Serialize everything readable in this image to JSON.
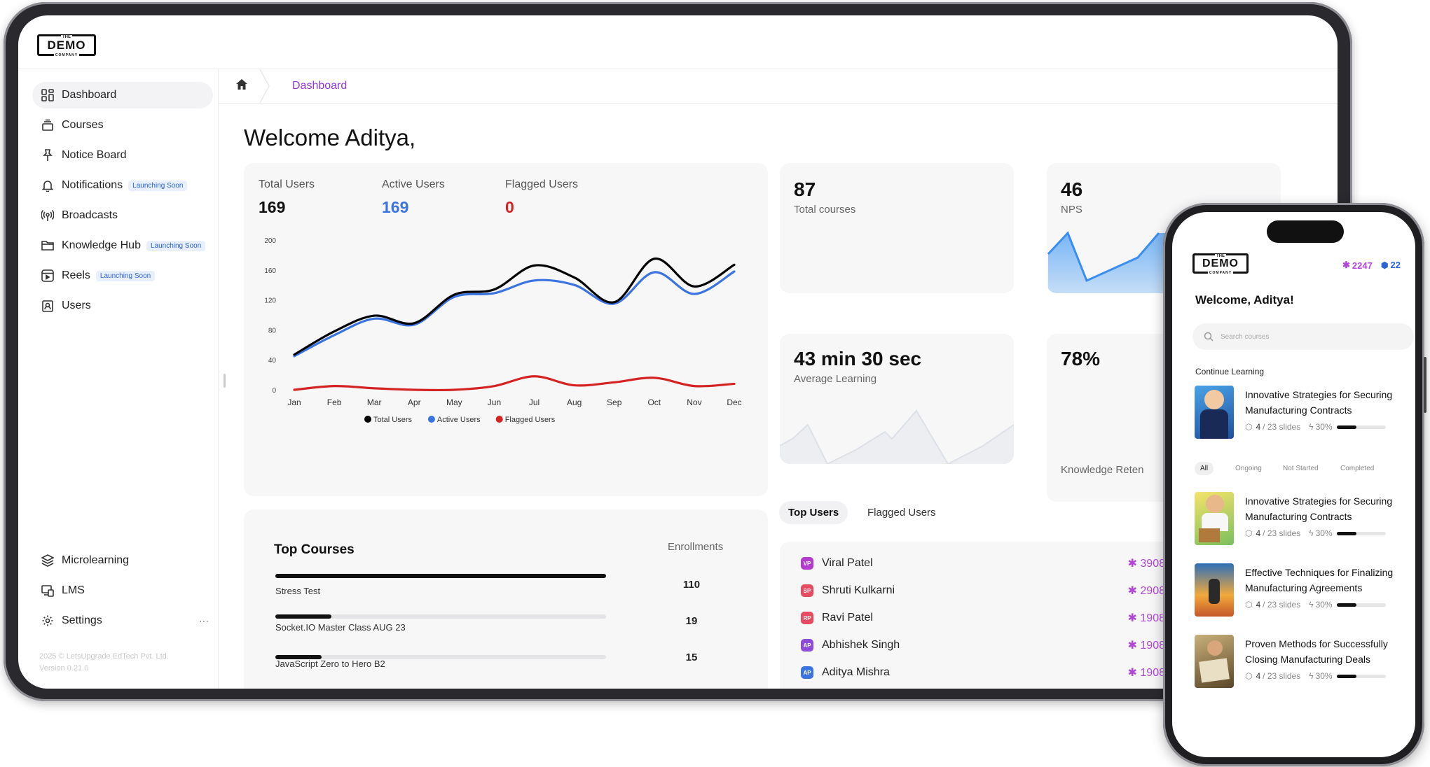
{
  "brand": {
    "logo_text": "DEMO",
    "logo_top": "THE",
    "logo_bottom": "COMPANY"
  },
  "sidebar": {
    "items": [
      {
        "label": "Dashboard",
        "icon": "grid-icon",
        "active": true
      },
      {
        "label": "Courses",
        "icon": "stack-icon"
      },
      {
        "label": "Notice Board",
        "icon": "pin-icon"
      },
      {
        "label": "Notifications",
        "icon": "bell-icon",
        "badge": "Launching Soon"
      },
      {
        "label": "Broadcasts",
        "icon": "broadcast-icon"
      },
      {
        "label": "Knowledge Hub",
        "icon": "folder-icon",
        "badge": "Launching Soon"
      },
      {
        "label": "Reels",
        "icon": "reels-icon",
        "badge": "Launching Soon"
      },
      {
        "label": "Users",
        "icon": "user-badge-icon"
      }
    ],
    "bottom_items": [
      {
        "label": "Microlearning",
        "icon": "layers-icon"
      },
      {
        "label": "LMS",
        "icon": "devices-icon"
      },
      {
        "label": "Settings",
        "icon": "gear-icon",
        "more": "···"
      }
    ],
    "footer_line1": "2025 © LetsUpgrade EdTech Pvt. Ltd.",
    "footer_line2": "Version 0.21.0"
  },
  "breadcrumb": {
    "current": "Dashboard"
  },
  "welcome": "Welcome Aditya,",
  "users_card": {
    "total_label": "Total Users",
    "total_value": "169",
    "active_label": "Active Users",
    "active_value": "169",
    "flagged_label": "Flagged Users",
    "flagged_value": "0"
  },
  "chart_data": {
    "type": "line",
    "categories": [
      "Jan",
      "Feb",
      "Mar",
      "Apr",
      "May",
      "Jun",
      "Jul",
      "Aug",
      "Sep",
      "Oct",
      "Nov",
      "Dec"
    ],
    "ylim": [
      0,
      200
    ],
    "yticks": [
      "200",
      "160",
      "120",
      "80",
      "40",
      "0"
    ],
    "series": [
      {
        "name": "Total Users",
        "color": "#000000",
        "values": [
          47,
          78,
          99,
          89,
          127,
          134,
          166,
          150,
          117,
          175,
          138,
          167
        ]
      },
      {
        "name": "Active Users",
        "color": "#3b74e0",
        "values": [
          45,
          73,
          95,
          87,
          124,
          129,
          146,
          140,
          115,
          157,
          128,
          158
        ]
      },
      {
        "name": "Flagged Users",
        "color": "#d42323",
        "values": [
          0,
          5,
          2,
          0,
          0,
          5,
          18,
          6,
          10,
          16,
          5,
          8
        ]
      }
    ]
  },
  "kpis": {
    "courses_value": "87",
    "courses_label": "Total courses",
    "nps_value": "46",
    "nps_label": "NPS",
    "learning_value": "43 min 30 sec",
    "learning_label": "Average Learning",
    "retention_value": "78%",
    "retention_label": "Knowledge Reten"
  },
  "top_courses": {
    "title": "Top Courses",
    "column": "Enrollments",
    "rows": [
      {
        "name": "Stress Test",
        "value": "110",
        "fill": 1.0
      },
      {
        "name": "Socket.IO Master Class AUG 23",
        "value": "19",
        "fill": 0.17
      },
      {
        "name": "JavaScript Zero to Hero B2",
        "value": "15",
        "fill": 0.14
      },
      {
        "name": "",
        "value": "",
        "fill": 0.1
      }
    ]
  },
  "users_tabs": {
    "top": "Top Users",
    "flagged": "Flagged Users"
  },
  "top_users": [
    {
      "initials": "VP",
      "name": "Viral Patel",
      "points": "3908",
      "color": "#b43ad0"
    },
    {
      "initials": "SP",
      "name": "Shruti Kulkarni",
      "points": "2908",
      "color": "#e84a5f"
    },
    {
      "initials": "RP",
      "name": "Ravi Patel",
      "points": "1908",
      "color": "#e84a5f"
    },
    {
      "initials": "AP",
      "name": "Abhishek Singh",
      "points": "1908",
      "color": "#8e4ad8"
    },
    {
      "initials": "AP",
      "name": "Aditya Mishra",
      "points": "1908",
      "color": "#3b74e0"
    }
  ],
  "phone": {
    "points": "2247",
    "gems": "22",
    "welcome": "Welcome, Aditya!",
    "search_placeholder": "Search courses",
    "continue_label": "Continue Learning",
    "tabs": [
      "All",
      "Ongoing",
      "Not Started",
      "Completed"
    ],
    "continue_course": {
      "title": "Innovative Strategies for Securing Manufacturing Contracts",
      "slides_done": "4",
      "slides_total": "/ 23 slides",
      "percent": "30%"
    },
    "courses": [
      {
        "title": "Innovative Strategies for Securing Manufacturing Contracts",
        "slides_done": "4",
        "slides_total": "/ 23 slides",
        "percent": "30%"
      },
      {
        "title": "Effective Techniques for Finalizing Manufacturing Agreements",
        "slides_done": "4",
        "slides_total": "/ 23 slides",
        "percent": "30%"
      },
      {
        "title": "Proven Methods for Successfully Closing Manufacturing Deals",
        "slides_done": "4",
        "slides_total": "/ 23 slides",
        "percent": "30%"
      }
    ]
  }
}
